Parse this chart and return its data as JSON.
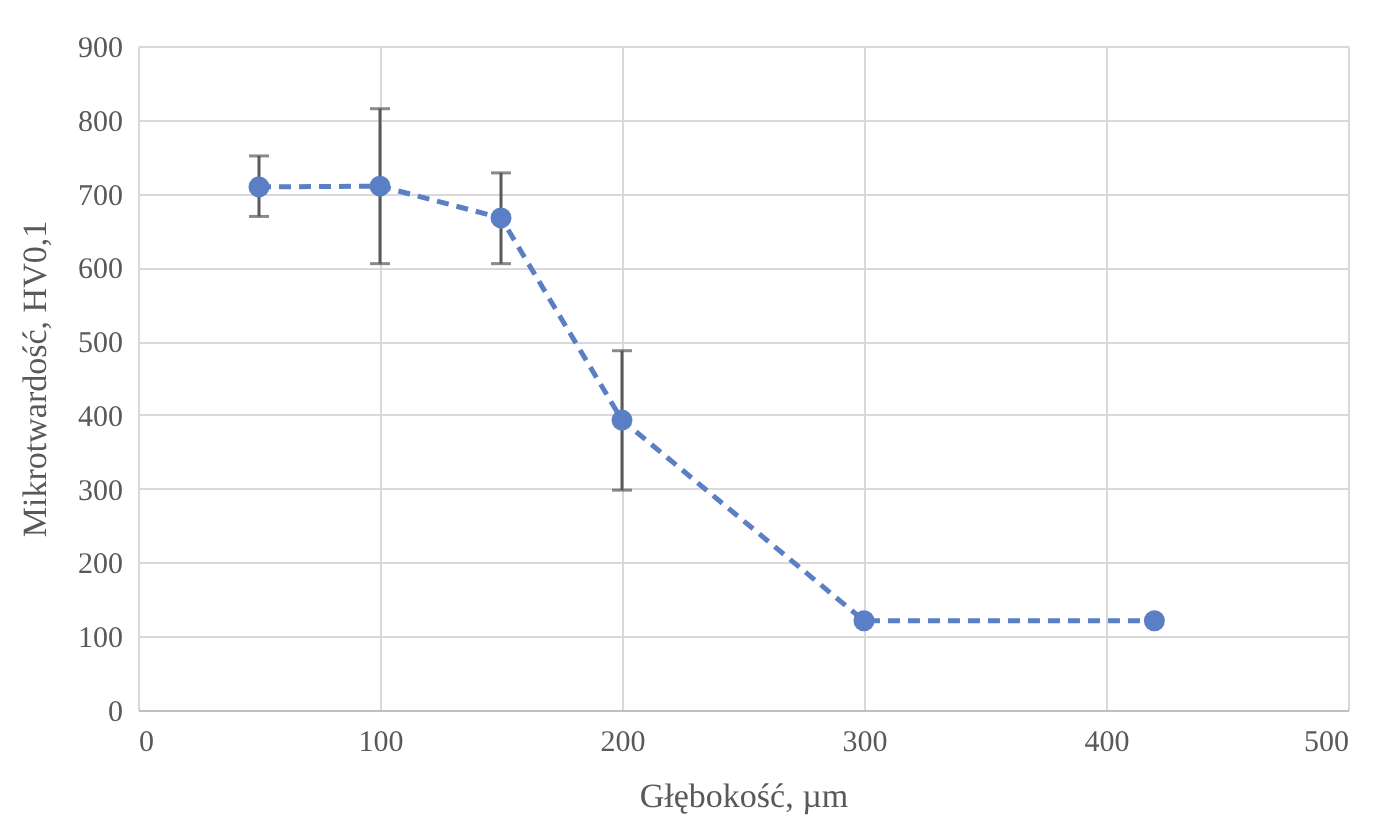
{
  "chart_data": {
    "type": "line",
    "xlabel": "Głębokość, µm",
    "ylabel": "Mikrotwardość, HV0,1",
    "x": [
      50,
      100,
      150,
      200,
      300,
      420
    ],
    "series": [
      {
        "color": "#5b7fc4",
        "values": [
          709,
          710,
          667,
          393,
          121,
          121
        ],
        "errors": [
          [
            669,
            751
          ],
          [
            605,
            815
          ],
          [
            605,
            728
          ],
          [
            298,
            487
          ],
          null,
          null
        ]
      }
    ],
    "xlim": [
      0,
      500
    ],
    "xticks": [
      0,
      100,
      200,
      300,
      400,
      500
    ],
    "ylim": [
      0,
      900
    ],
    "yticks": [
      0,
      100,
      200,
      300,
      400,
      500,
      600,
      700,
      800,
      900
    ],
    "grid": true,
    "marker": "circle",
    "line_style": "dashed"
  }
}
